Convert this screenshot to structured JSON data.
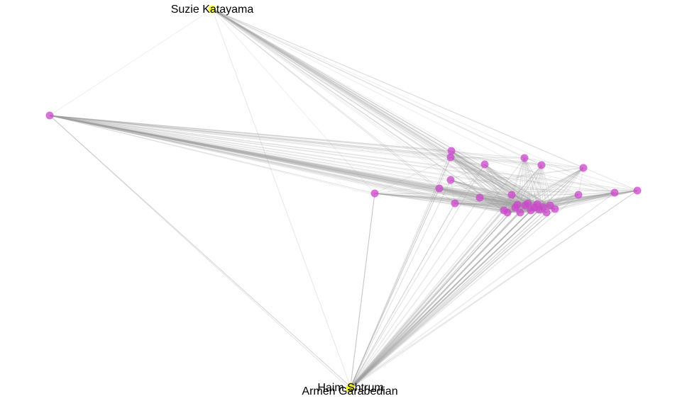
{
  "graph": {
    "edge_color": "#9e9e9e",
    "node_colors": {
      "labeled": "#f5f500",
      "unlabeled": "#cc44cc"
    },
    "labeled_nodes": [
      {
        "id": "suzie",
        "label": "Suzie Katayama"
      },
      {
        "id": "haim",
        "label": "Haim Shtrum"
      },
      {
        "id": "armen",
        "label": "Armen Garabedian"
      }
    ],
    "unlabeled_node_count": 31
  }
}
